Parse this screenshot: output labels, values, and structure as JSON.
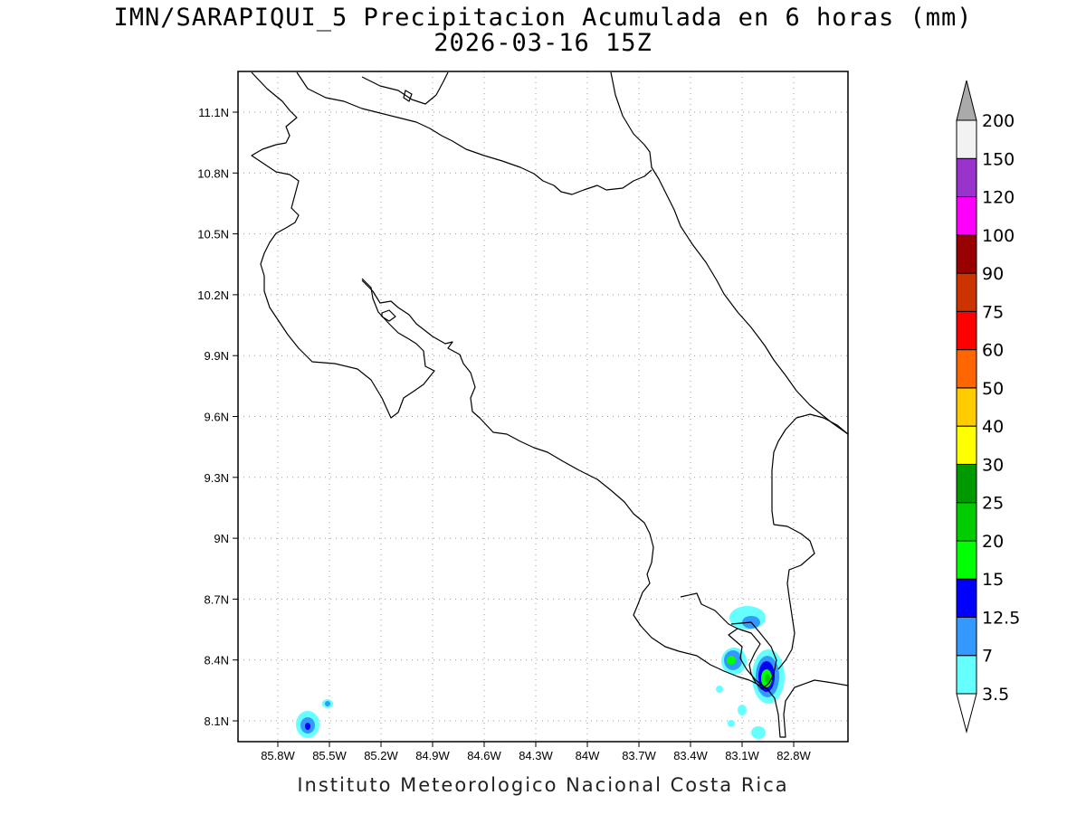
{
  "header": {
    "title": "IMN/SARAPIQUI_5 Precipitacion Acumulada en 6 horas (mm)",
    "subtitle": "2026-03-16 15Z"
  },
  "footer": {
    "credit": "Instituto Meteorologico Nacional Costa Rica"
  },
  "map": {
    "lat_ticks": [
      "11.1N",
      "10.8N",
      "10.5N",
      "10.2N",
      "9.9N",
      "9.6N",
      "9.3N",
      "9N",
      "8.7N",
      "8.4N",
      "8.1N"
    ],
    "lon_ticks": [
      "85.8W",
      "85.5W",
      "85.2W",
      "84.9W",
      "84.6W",
      "84.3W",
      "84W",
      "83.7W",
      "83.4W",
      "83.1W",
      "82.8W"
    ],
    "grid": "dotted",
    "coastline_color": "#000000"
  },
  "colorbar": {
    "levels": [
      "3.5",
      "7",
      "12.5",
      "15",
      "20",
      "25",
      "30",
      "40",
      "50",
      "60",
      "75",
      "90",
      "100",
      "120",
      "150",
      "200"
    ],
    "colors": [
      "#66ffff",
      "#3399ff",
      "#0000ff",
      "#00ff00",
      "#00cc00",
      "#009900",
      "#ffff00",
      "#ffcc00",
      "#ff6600",
      "#ff0000",
      "#cc3300",
      "#990000",
      "#ff00ff",
      "#9933cc",
      "#f2f2f2",
      "#aaaaaa"
    ],
    "below_color": "#ffffff"
  }
}
